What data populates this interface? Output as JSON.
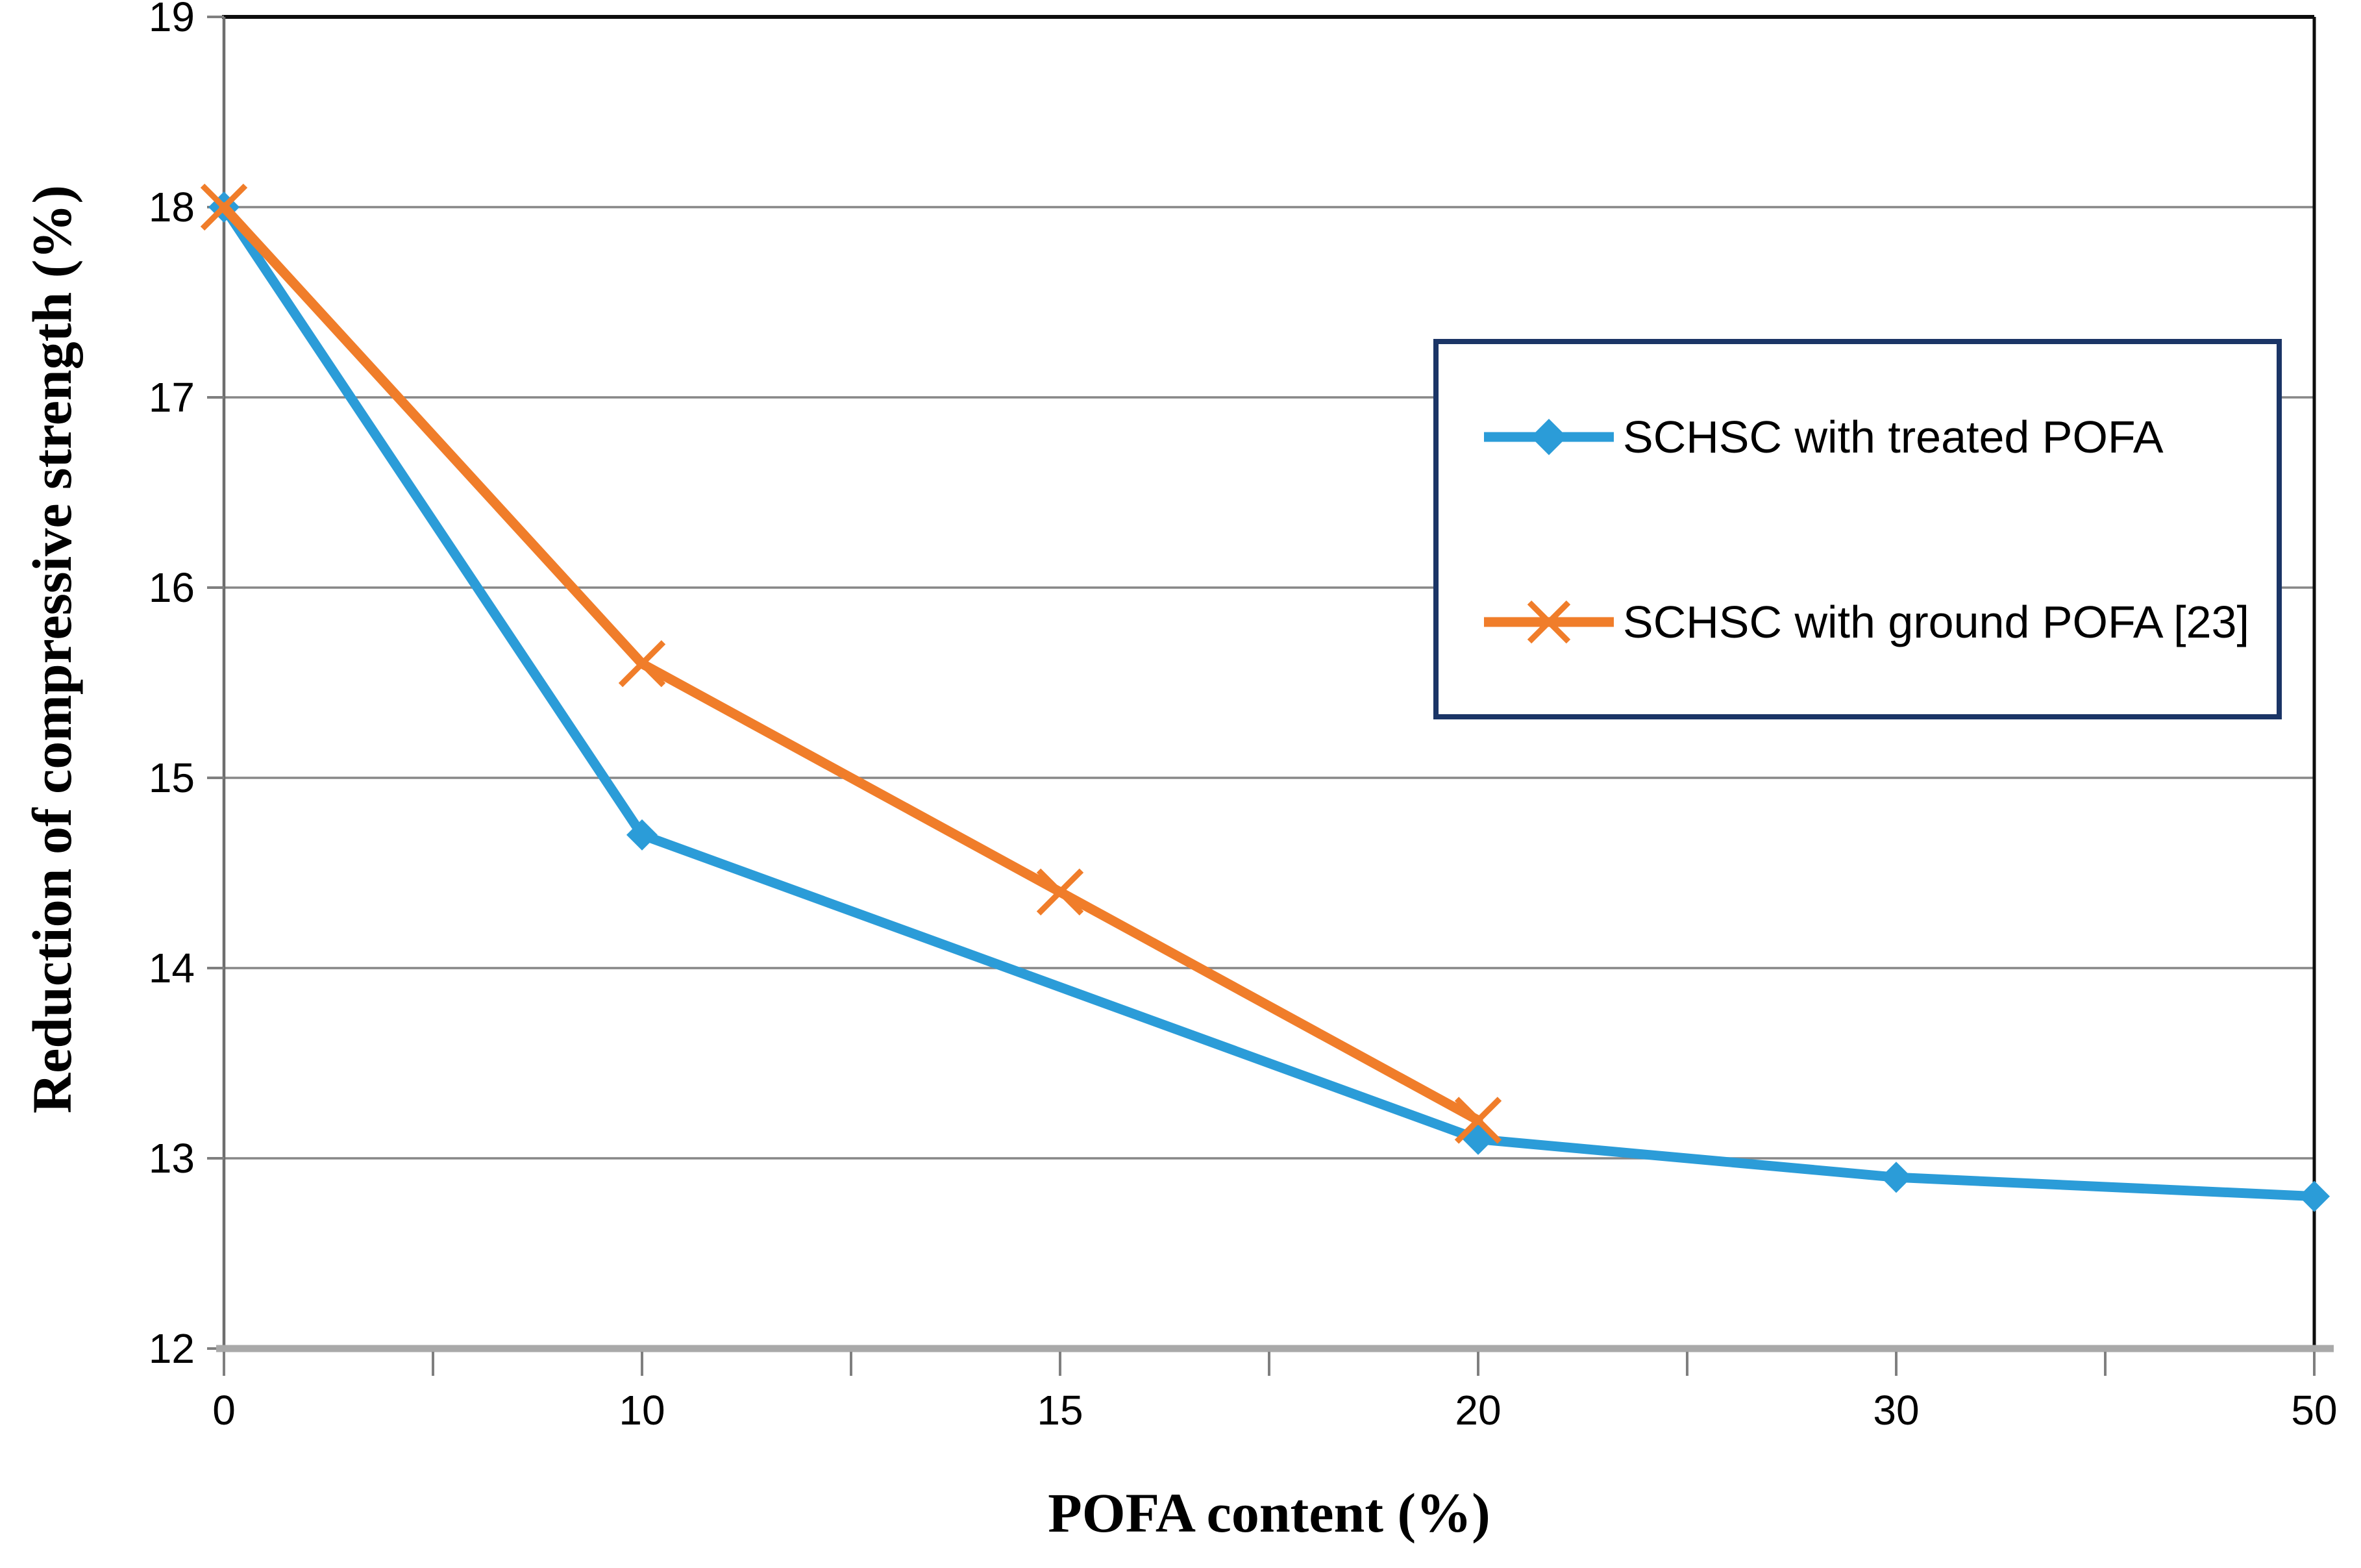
{
  "chart_data": {
    "type": "line",
    "title": "",
    "xlabel": "POFA content (%)",
    "ylabel": "Reduction of compressive strength (%)",
    "x_axis_type": "category",
    "x_categories": [
      "0",
      "10",
      "15",
      "20",
      "30",
      "50"
    ],
    "y_ticks": [
      "12",
      "13",
      "14",
      "15",
      "16",
      "17",
      "18",
      "19"
    ],
    "ylim": [
      12,
      19
    ],
    "grid": "horizontal-major",
    "legend_position": "inside-top-right",
    "series": [
      {
        "name": "SCHSC with treated POFA",
        "color": "#2B9CD8",
        "marker": "diamond",
        "points": [
          {
            "x": "0",
            "y": 18.0
          },
          {
            "x": "10",
            "y": 14.7
          },
          {
            "x": "20",
            "y": 13.1
          },
          {
            "x": "30",
            "y": 12.9
          },
          {
            "x": "50",
            "y": 12.8
          }
        ]
      },
      {
        "name": "SCHSC with ground POFA [23]",
        "color": "#F07D2A",
        "marker": "x",
        "points": [
          {
            "x": "0",
            "y": 18.0
          },
          {
            "x": "10",
            "y": 15.6
          },
          {
            "x": "15",
            "y": 14.4
          },
          {
            "x": "20",
            "y": 13.2
          }
        ]
      }
    ],
    "colors": {
      "gridline": "#878787",
      "axis_left": "#6E6E6E",
      "axis_bottom": "#A9A9A9",
      "tick": "#7F7F7F",
      "plot_border": "#0d0d0d",
      "legend_border": "#1B3566"
    }
  }
}
